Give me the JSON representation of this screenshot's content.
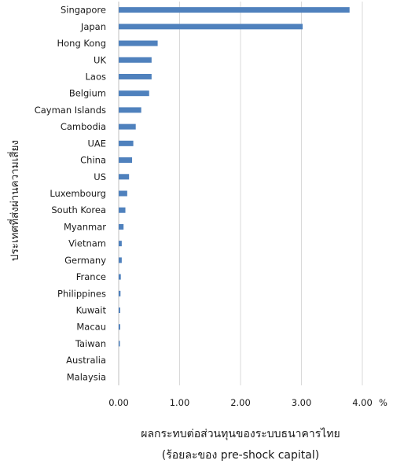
{
  "chart_data": {
    "type": "bar",
    "orientation": "horizontal",
    "categories": [
      "Singapore",
      "Japan",
      "Hong Kong",
      "UK",
      "Laos",
      "Belgium",
      "Cayman Islands",
      "Cambodia",
      "UAE",
      "China",
      "US",
      "Luxembourg",
      "South Korea",
      "Myanmar",
      "Vietnam",
      "Germany",
      "France",
      "Philippines",
      "Kuwait",
      "Macau",
      "Taiwan",
      "Australia",
      "Malaysia"
    ],
    "values": [
      3.79,
      3.02,
      0.64,
      0.54,
      0.54,
      0.5,
      0.37,
      0.28,
      0.24,
      0.22,
      0.17,
      0.14,
      0.11,
      0.08,
      0.05,
      0.05,
      0.035,
      0.03,
      0.025,
      0.025,
      0.02,
      0.0,
      0.0
    ],
    "xlabel": "ผลกระทบต่อส่วนทุนของระบบธนาคารไทย",
    "xlabel_line2": "(ร้อยละของ pre-shock capital)",
    "ylabel": "ประเทศที่ส่งผ่านความเสี่ยง",
    "xlim": [
      0,
      4
    ],
    "xticks": [
      "0.00",
      "1.00",
      "2.00",
      "3.00",
      "4.00"
    ],
    "xtick_values": [
      0,
      1,
      2,
      3,
      4
    ],
    "x_unit": "%",
    "grid": "vertical",
    "bar_color": "#4f81bd"
  }
}
